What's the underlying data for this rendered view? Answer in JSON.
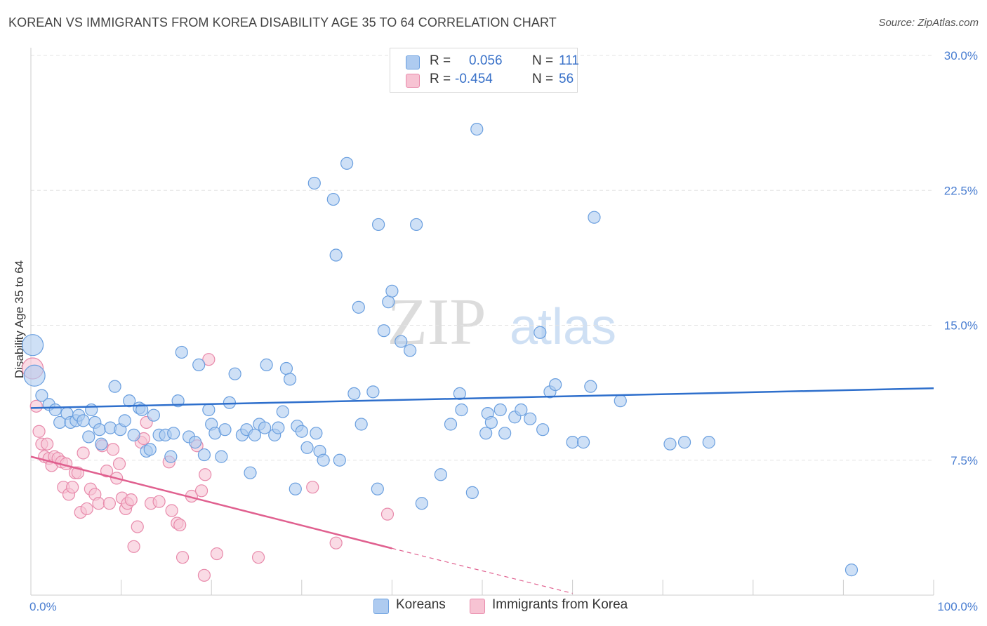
{
  "header": {
    "title": "KOREAN VS IMMIGRANTS FROM KOREA DISABILITY AGE 35 TO 64 CORRELATION CHART",
    "source": "Source: ZipAtlas.com"
  },
  "watermark": {
    "zip": "ZIP",
    "atlas": "atlas"
  },
  "legend": {
    "rows": [
      {
        "r_label": "R =",
        "r_value": "0.056",
        "n_label": "N =",
        "n_value": "111"
      },
      {
        "r_label": "R =",
        "r_value": "-0.454",
        "n_label": "N =",
        "n_value": "56"
      }
    ]
  },
  "bottom_legend": {
    "koreans": "Koreans",
    "immigrants": "Immigrants from Korea"
  },
  "colors": {
    "koreans_fill": "#aecbf0",
    "koreans_stroke": "#6a9fdf",
    "koreans_line": "#2e6fcc",
    "immigrants_fill": "#f7c3d3",
    "immigrants_stroke": "#e88aab",
    "immigrants_line": "#e0608f",
    "tick_text": "#4a7ed1",
    "grid": "#e3e3e3"
  },
  "chart_data": {
    "type": "scatter",
    "title": "KOREAN VS IMMIGRANTS FROM KOREA DISABILITY AGE 35 TO 64 CORRELATION CHART",
    "xlabel": "",
    "ylabel": "Disability Age 35 to 64",
    "xlim": [
      0,
      100
    ],
    "ylim": [
      0,
      30.0
    ],
    "y_ticks": [
      7.5,
      15.0,
      22.5,
      30.0
    ],
    "y_tick_labels": [
      "7.5%",
      "15.0%",
      "22.5%",
      "30.0%"
    ],
    "x_tick_labels": [
      "0.0%",
      "100.0%"
    ],
    "grid": true,
    "legend_position": "top-center",
    "series": [
      {
        "name": "Koreans",
        "trend": {
          "x": [
            0,
            100
          ],
          "y": [
            10.4,
            11.5
          ]
        },
        "points": [
          [
            0.2,
            13.9,
            2
          ],
          [
            0.4,
            12.2,
            2
          ],
          [
            1.2,
            11.1,
            1
          ],
          [
            2.0,
            10.6,
            1
          ],
          [
            2.7,
            10.3,
            1
          ],
          [
            3.2,
            9.6,
            1
          ],
          [
            4.0,
            10.1,
            1
          ],
          [
            4.4,
            9.6,
            1
          ],
          [
            5.0,
            9.7,
            1
          ],
          [
            5.3,
            10.0,
            1
          ],
          [
            5.8,
            9.7,
            1
          ],
          [
            6.4,
            8.8,
            1
          ],
          [
            6.7,
            10.3,
            1
          ],
          [
            7.1,
            9.6,
            1
          ],
          [
            7.6,
            9.2,
            1
          ],
          [
            7.8,
            8.4,
            1
          ],
          [
            8.8,
            9.3,
            1
          ],
          [
            9.3,
            11.6,
            1
          ],
          [
            9.9,
            9.2,
            1
          ],
          [
            10.4,
            9.7,
            1
          ],
          [
            10.9,
            10.8,
            1
          ],
          [
            11.4,
            8.9,
            1
          ],
          [
            12.0,
            10.4,
            1
          ],
          [
            12.3,
            10.3,
            1
          ],
          [
            12.8,
            8.0,
            1
          ],
          [
            13.2,
            8.1,
            1
          ],
          [
            13.6,
            10.0,
            1
          ],
          [
            14.2,
            8.9,
            1
          ],
          [
            14.9,
            8.9,
            1
          ],
          [
            15.5,
            7.7,
            1
          ],
          [
            15.8,
            9.0,
            1
          ],
          [
            16.3,
            10.8,
            1
          ],
          [
            16.7,
            13.5,
            1
          ],
          [
            17.5,
            8.8,
            1
          ],
          [
            18.2,
            8.5,
            1
          ],
          [
            18.6,
            12.8,
            1
          ],
          [
            19.2,
            7.8,
            1
          ],
          [
            19.7,
            10.3,
            1
          ],
          [
            20.0,
            9.5,
            1
          ],
          [
            20.4,
            9.0,
            1
          ],
          [
            21.1,
            7.7,
            1
          ],
          [
            21.5,
            9.2,
            1
          ],
          [
            22.0,
            10.7,
            1
          ],
          [
            22.6,
            12.3,
            1
          ],
          [
            23.4,
            8.9,
            1
          ],
          [
            23.9,
            9.2,
            1
          ],
          [
            24.3,
            6.8,
            1
          ],
          [
            24.8,
            8.9,
            1
          ],
          [
            25.3,
            9.5,
            1
          ],
          [
            25.9,
            9.3,
            1
          ],
          [
            26.1,
            12.8,
            1
          ],
          [
            27.0,
            8.9,
            1
          ],
          [
            27.4,
            9.3,
            1
          ],
          [
            27.9,
            10.2,
            1
          ],
          [
            28.3,
            12.6,
            1
          ],
          [
            28.7,
            12.0,
            1
          ],
          [
            29.3,
            5.9,
            1
          ],
          [
            29.5,
            9.4,
            1
          ],
          [
            30.0,
            9.1,
            1
          ],
          [
            30.6,
            8.2,
            1
          ],
          [
            31.4,
            22.9,
            1
          ],
          [
            31.6,
            9.0,
            1
          ],
          [
            32.0,
            8.0,
            1
          ],
          [
            32.4,
            7.5,
            1
          ],
          [
            33.5,
            22.0,
            1
          ],
          [
            33.8,
            18.9,
            1
          ],
          [
            34.2,
            7.5,
            1
          ],
          [
            35.0,
            24.0,
            1
          ],
          [
            35.8,
            11.2,
            1
          ],
          [
            36.3,
            16.0,
            1
          ],
          [
            36.6,
            9.5,
            1
          ],
          [
            37.9,
            11.3,
            1
          ],
          [
            38.4,
            5.9,
            1
          ],
          [
            38.5,
            20.6,
            1
          ],
          [
            39.1,
            14.7,
            1
          ],
          [
            39.6,
            16.3,
            1
          ],
          [
            40.0,
            16.9,
            1
          ],
          [
            41.0,
            14.1,
            1
          ],
          [
            42.0,
            13.6,
            1
          ],
          [
            42.7,
            20.6,
            1
          ],
          [
            43.3,
            5.1,
            1
          ],
          [
            45.4,
            6.7,
            1
          ],
          [
            46.5,
            9.5,
            1
          ],
          [
            47.5,
            11.2,
            1
          ],
          [
            47.7,
            10.3,
            1
          ],
          [
            48.9,
            5.7,
            1
          ],
          [
            49.4,
            25.9,
            1
          ],
          [
            50.4,
            9.0,
            1
          ],
          [
            50.6,
            10.1,
            1
          ],
          [
            51.0,
            9.6,
            1
          ],
          [
            52.0,
            10.3,
            1
          ],
          [
            52.5,
            9.0,
            1
          ],
          [
            53.6,
            9.9,
            1
          ],
          [
            54.3,
            10.3,
            1
          ],
          [
            55.3,
            9.8,
            1
          ],
          [
            56.4,
            14.6,
            1
          ],
          [
            56.7,
            9.2,
            1
          ],
          [
            57.5,
            11.3,
            1
          ],
          [
            58.1,
            11.7,
            1
          ],
          [
            60.0,
            8.5,
            1
          ],
          [
            61.2,
            8.5,
            1
          ],
          [
            62.0,
            11.6,
            1
          ],
          [
            62.4,
            21.0,
            1
          ],
          [
            65.3,
            10.8,
            1
          ],
          [
            70.8,
            8.4,
            1
          ],
          [
            72.4,
            8.5,
            1
          ],
          [
            75.1,
            8.5,
            1
          ],
          [
            90.9,
            1.4,
            1
          ]
        ]
      },
      {
        "name": "Immigrants from Korea",
        "trend": {
          "x": [
            0,
            40
          ],
          "y": [
            7.7,
            2.6
          ]
        },
        "trend_extension": {
          "x": [
            40,
            60
          ],
          "y": [
            2.6,
            0.1
          ]
        },
        "points": [
          [
            0.2,
            12.6,
            2
          ],
          [
            0.6,
            10.5,
            1
          ],
          [
            0.9,
            9.1,
            1
          ],
          [
            1.2,
            8.4,
            1
          ],
          [
            1.5,
            7.7,
            1
          ],
          [
            1.8,
            8.4,
            1
          ],
          [
            2.0,
            7.6,
            1
          ],
          [
            2.3,
            7.2,
            1
          ],
          [
            2.6,
            7.7,
            1
          ],
          [
            3.0,
            7.6,
            1
          ],
          [
            3.4,
            7.4,
            1
          ],
          [
            3.6,
            6.0,
            1
          ],
          [
            3.9,
            7.3,
            1
          ],
          [
            4.2,
            5.6,
            1
          ],
          [
            4.6,
            6.0,
            1
          ],
          [
            4.9,
            6.8,
            1
          ],
          [
            5.2,
            6.8,
            1
          ],
          [
            5.5,
            4.6,
            1
          ],
          [
            5.8,
            7.9,
            1
          ],
          [
            6.2,
            4.8,
            1
          ],
          [
            6.6,
            5.9,
            1
          ],
          [
            7.1,
            5.6,
            1
          ],
          [
            7.5,
            5.1,
            1
          ],
          [
            7.9,
            8.3,
            1
          ],
          [
            8.4,
            6.9,
            1
          ],
          [
            8.7,
            5.1,
            1
          ],
          [
            9.1,
            8.1,
            1
          ],
          [
            9.5,
            6.5,
            1
          ],
          [
            9.8,
            7.3,
            1
          ],
          [
            10.1,
            5.4,
            1
          ],
          [
            10.5,
            4.8,
            1
          ],
          [
            10.7,
            5.1,
            1
          ],
          [
            11.1,
            5.3,
            1
          ],
          [
            11.4,
            2.7,
            1
          ],
          [
            11.8,
            3.8,
            1
          ],
          [
            12.2,
            8.5,
            1
          ],
          [
            12.5,
            8.7,
            1
          ],
          [
            12.8,
            9.6,
            1
          ],
          [
            13.3,
            5.1,
            1
          ],
          [
            14.2,
            5.2,
            1
          ],
          [
            15.3,
            7.4,
            1
          ],
          [
            15.6,
            4.7,
            1
          ],
          [
            16.2,
            4.0,
            1
          ],
          [
            16.5,
            3.9,
            1
          ],
          [
            16.8,
            2.1,
            1
          ],
          [
            17.8,
            5.5,
            1
          ],
          [
            18.4,
            8.3,
            1
          ],
          [
            18.9,
            5.8,
            1
          ],
          [
            19.3,
            6.7,
            1
          ],
          [
            19.2,
            1.1,
            1
          ],
          [
            19.7,
            13.1,
            1
          ],
          [
            20.6,
            2.3,
            1
          ],
          [
            25.2,
            2.1,
            1
          ],
          [
            31.2,
            6.0,
            1
          ],
          [
            33.8,
            2.9,
            1
          ],
          [
            39.5,
            4.5,
            1
          ]
        ]
      }
    ]
  }
}
